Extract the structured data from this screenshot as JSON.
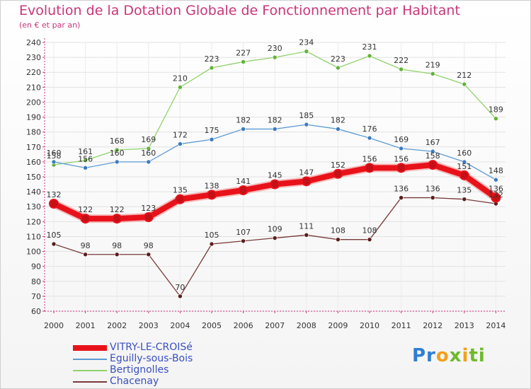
{
  "title": "Evolution de la Dotation Globale de Fonctionnement par Habitant",
  "subtitle": "(en € et par an)",
  "logo": {
    "text": "Proxiti",
    "parts": [
      "Pr",
      "o",
      "x",
      "i",
      "ti"
    ]
  },
  "colors": {
    "title": "#c8367a",
    "axis_text": "#333333",
    "legend_text": "#3a4fbf"
  },
  "chart_data": {
    "type": "line",
    "title": "Evolution de la Dotation Globale de Fonctionnement par Habitant",
    "subtitle": "(en € et par an)",
    "xlabel": "",
    "ylabel": "",
    "ylim": [
      60,
      240
    ],
    "y_ticks": [
      60,
      70,
      80,
      90,
      100,
      110,
      120,
      130,
      140,
      150,
      160,
      170,
      180,
      190,
      200,
      210,
      220,
      230,
      240
    ],
    "grid": true,
    "legend_position": "bottom-left",
    "x": [
      "2000",
      "2001",
      "2002",
      "2003",
      "2004",
      "2005",
      "2006",
      "2007",
      "2008",
      "2009",
      "2010",
      "2011",
      "2012",
      "2013",
      "2014"
    ],
    "series": [
      {
        "name": "VITRY-LE-CROISé",
        "color": "#e8121a",
        "marker_color": "#c41016",
        "thick": true,
        "values": [
          132,
          122,
          122,
          123,
          135,
          138,
          141,
          145,
          147,
          152,
          156,
          156,
          158,
          151,
          136
        ],
        "labels": [
          "132",
          "122",
          "122",
          "123",
          "135",
          "138",
          "141",
          "145",
          "147",
          "152",
          "156",
          "156",
          "158",
          "151",
          "136"
        ]
      },
      {
        "name": "Eguilly-sous-Bois",
        "color": "#5b9bd5",
        "marker_color": "#3b7bc0",
        "thick": false,
        "values": [
          160,
          156,
          160,
          160,
          172,
          175,
          182,
          182,
          185,
          182,
          176,
          169,
          167,
          160,
          148
        ],
        "labels": [
          "160",
          "156",
          "160",
          "160",
          "172",
          "175",
          "182",
          "182",
          "185",
          "182",
          "176",
          "169",
          "167",
          "160",
          "148"
        ]
      },
      {
        "name": "Bertignolles",
        "color": "#8fd36a",
        "marker_color": "#62b23a",
        "thick": false,
        "values": [
          158,
          161,
          168,
          169,
          210,
          223,
          227,
          230,
          234,
          223,
          231,
          222,
          219,
          212,
          189
        ],
        "labels": [
          "158",
          "161",
          "168",
          "169",
          "210",
          "223",
          "227",
          "230",
          "234",
          "223",
          "231",
          "222",
          "219",
          "212",
          "189"
        ]
      },
      {
        "name": "Chacenay",
        "color": "#7a3a3a",
        "marker_color": "#5a1d1d",
        "thick": false,
        "values": [
          105,
          98,
          98,
          98,
          70,
          105,
          107,
          109,
          111,
          108,
          108,
          136,
          136,
          135,
          132
        ],
        "labels": [
          "105",
          "98",
          "98",
          "98",
          "70",
          "105",
          "107",
          "109",
          "111",
          "108",
          "108",
          "136",
          "136",
          "135",
          "132"
        ]
      }
    ]
  }
}
